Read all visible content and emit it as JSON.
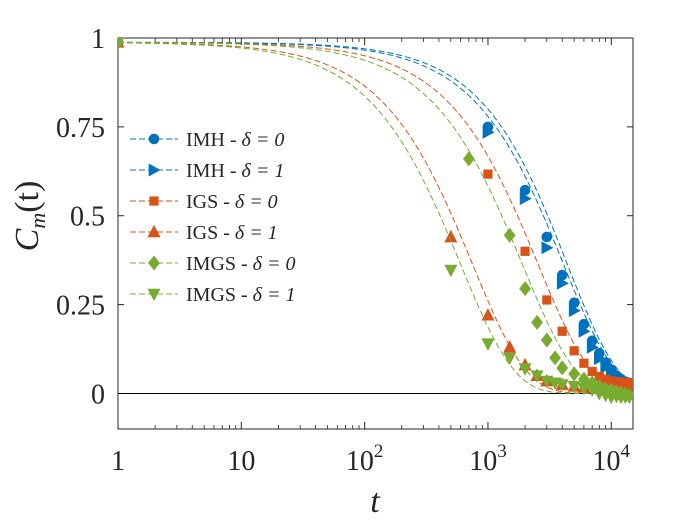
{
  "chart_data": {
    "type": "line",
    "xscale": "log",
    "xlim": [
      1,
      15000
    ],
    "ylim": [
      -0.1,
      1.0
    ],
    "xlabel": "t",
    "ylabel": "C_m(t)",
    "ylabel_display": {
      "main": "C",
      "sub": "m",
      "arg": "(t)"
    },
    "xticks": [
      {
        "value": 1,
        "label": "1"
      },
      {
        "value": 10,
        "label": "10"
      },
      {
        "value": 100,
        "base": "10",
        "exp": "2"
      },
      {
        "value": 1000,
        "base": "10",
        "exp": "3"
      },
      {
        "value": 10000,
        "base": "10",
        "exp": "4"
      }
    ],
    "yticks": [
      {
        "value": 0,
        "label": "0"
      },
      {
        "value": 0.25,
        "label": "0.25"
      },
      {
        "value": 0.5,
        "label": "0.5"
      },
      {
        "value": 0.75,
        "label": "0.75"
      },
      {
        "value": 1,
        "label": "1"
      }
    ],
    "reference_line": {
      "y": 0,
      "color": "#000000"
    },
    "legend_position": "top-left",
    "series": [
      {
        "name": "IMH - δ = 0",
        "label_prefix": "IMH - ",
        "label_eq": "δ = 0",
        "color": "#0072BD",
        "marker": "circle",
        "curve": {
          "tau": 4400,
          "beta": 1.05,
          "x0": 1,
          "y0": 0.988
        },
        "points": [
          [
            1000,
            0.75
          ],
          [
            2000,
            0.572
          ],
          [
            3000,
            0.44
          ],
          [
            4000,
            0.333
          ],
          [
            5000,
            0.255
          ],
          [
            6000,
            0.195
          ],
          [
            7000,
            0.148
          ],
          [
            8000,
            0.113
          ],
          [
            9000,
            0.087
          ],
          [
            10000,
            0.067
          ],
          [
            11000,
            0.05
          ],
          [
            12000,
            0.04
          ],
          [
            13000,
            0.033
          ],
          [
            14000,
            0.03
          ]
        ]
      },
      {
        "name": "IMH - δ = 1",
        "label_prefix": "IMH - ",
        "label_eq": "δ = 1",
        "color": "#0072BD",
        "marker": "triangle-right",
        "curve": {
          "tau": 4100,
          "beta": 1.02,
          "x0": 1,
          "y0": 0.988
        },
        "points": [
          [
            1000,
            0.735
          ],
          [
            2000,
            0.548
          ],
          [
            3000,
            0.41
          ],
          [
            4000,
            0.31
          ],
          [
            5000,
            0.233
          ],
          [
            6000,
            0.175
          ],
          [
            7000,
            0.13
          ],
          [
            8000,
            0.098
          ],
          [
            9000,
            0.074
          ],
          [
            10000,
            0.056
          ],
          [
            11000,
            0.042
          ],
          [
            12000,
            0.033
          ],
          [
            13000,
            0.027
          ],
          [
            14000,
            0.024
          ]
        ]
      },
      {
        "name": "IGS - δ = 0",
        "label_prefix": "IGS - ",
        "label_eq": "δ = 0",
        "color": "#D95319",
        "marker": "square",
        "curve": {
          "tau": 2550,
          "beta": 1.0,
          "x0": 1,
          "y0": 0.988
        },
        "points": [
          [
            1000,
            0.617
          ],
          [
            2000,
            0.4
          ],
          [
            3000,
            0.263
          ],
          [
            4000,
            0.175
          ],
          [
            5000,
            0.12
          ],
          [
            6000,
            0.085
          ],
          [
            7000,
            0.062
          ],
          [
            8000,
            0.048
          ],
          [
            9000,
            0.04
          ],
          [
            10000,
            0.035
          ],
          [
            11000,
            0.033
          ],
          [
            12000,
            0.032
          ],
          [
            13000,
            0.031
          ],
          [
            14000,
            0.03
          ]
        ]
      },
      {
        "name": "IGS - δ = 1",
        "label_prefix": "IGS - ",
        "label_eq": "δ = 1",
        "color": "#D95319",
        "marker": "triangle-up",
        "curve": {
          "tau": 750,
          "beta": 1.0,
          "x0": 1,
          "y0": 0.988
        },
        "points": [
          [
            500,
            0.44
          ],
          [
            1000,
            0.22
          ],
          [
            1500,
            0.13
          ],
          [
            2000,
            0.08
          ],
          [
            2500,
            0.05
          ],
          [
            3000,
            0.035
          ],
          [
            4000,
            0.025
          ],
          [
            5000,
            0.02
          ],
          [
            6000,
            0.017
          ],
          [
            7000,
            0.015
          ],
          [
            8000,
            0.013
          ],
          [
            9000,
            0.012
          ],
          [
            10000,
            0.011
          ],
          [
            11000,
            0.01
          ],
          [
            12000,
            0.01
          ],
          [
            13000,
            0.01
          ],
          [
            14000,
            0.01
          ]
        ]
      },
      {
        "name": "IMGS - δ = 0",
        "label_prefix": "IMGS - ",
        "label_eq": "δ = 0",
        "color": "#77AC30",
        "marker": "diamond",
        "curve": {
          "tau": 1900,
          "beta": 1.0,
          "x0": 1,
          "y0": 0.988
        },
        "points": [
          [
            700,
            0.66
          ],
          [
            1500,
            0.445
          ],
          [
            2000,
            0.295
          ],
          [
            2500,
            0.2
          ],
          [
            3000,
            0.15
          ],
          [
            3500,
            0.1
          ],
          [
            4000,
            0.072
          ],
          [
            5000,
            0.055
          ],
          [
            6000,
            0.04
          ],
          [
            7000,
            0.03
          ],
          [
            8000,
            0.02
          ],
          [
            9000,
            0.012
          ],
          [
            10000,
            0.008
          ],
          [
            11000,
            0.004
          ],
          [
            12000,
            0.001
          ],
          [
            13000,
            -0.002
          ],
          [
            14000,
            -0.005
          ]
        ]
      },
      {
        "name": "IMGS - δ = 1",
        "label_prefix": "IMGS - ",
        "label_eq": "δ = 1",
        "color": "#77AC30",
        "marker": "triangle-down",
        "curve": {
          "tau": 600,
          "beta": 1.0,
          "x0": 1,
          "y0": 0.988
        },
        "points": [
          [
            500,
            0.347
          ],
          [
            1000,
            0.14
          ],
          [
            1500,
            0.1
          ],
          [
            2000,
            0.07
          ],
          [
            2500,
            0.05
          ],
          [
            3000,
            0.035
          ],
          [
            3500,
            0.03
          ],
          [
            4000,
            0.025
          ],
          [
            5000,
            0.02
          ],
          [
            6000,
            0.015
          ],
          [
            7000,
            0.01
          ],
          [
            8000,
            0.0
          ],
          [
            9000,
            -0.005
          ],
          [
            10000,
            -0.01
          ],
          [
            11000,
            -0.008
          ],
          [
            12000,
            -0.01
          ],
          [
            13000,
            -0.01
          ],
          [
            14000,
            -0.01
          ]
        ]
      }
    ]
  }
}
